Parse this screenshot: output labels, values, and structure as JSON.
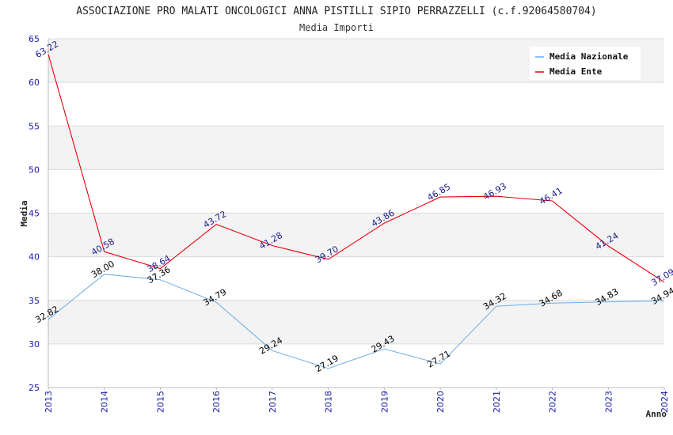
{
  "chart_data": {
    "type": "line",
    "title": "ASSOCIAZIONE PRO MALATI ONCOLOGICI ANNA PISTILLI SIPIO PERRAZZELLI (c.f.92064580704)",
    "subtitle": "Media Importi",
    "xlabel": "Anno",
    "ylabel": "Media",
    "ylim": [
      25,
      65
    ],
    "yticks": [
      "25",
      "30",
      "35",
      "40",
      "45",
      "50",
      "55",
      "60",
      "65"
    ],
    "x": [
      "2013",
      "2014",
      "2015",
      "2016",
      "2017",
      "2018",
      "2019",
      "2020",
      "2021",
      "2022",
      "2023",
      "2024"
    ],
    "legend_position": "top-right",
    "series": [
      {
        "name": "Media Nazionale",
        "color": "#6aaee8",
        "label_color": "#000000",
        "values": [
          32.82,
          38.0,
          37.36,
          34.79,
          29.24,
          27.19,
          29.43,
          27.71,
          34.32,
          34.68,
          34.83,
          34.94
        ],
        "labels": [
          "32.82",
          "38.00",
          "37.36",
          "34.79",
          "29.24",
          "27.19",
          "29.43",
          "27.71",
          "34.32",
          "34.68",
          "34.83",
          "34.94"
        ]
      },
      {
        "name": "Media Ente",
        "color": "#e8000b",
        "label_color": "#1a1a8c",
        "values": [
          63.22,
          40.58,
          38.64,
          43.72,
          41.28,
          39.7,
          43.86,
          46.85,
          46.93,
          46.41,
          41.24,
          37.09
        ],
        "labels": [
          "63.22",
          "40.58",
          "38.64",
          "43.72",
          "41.28",
          "39.70",
          "43.86",
          "46.85",
          "46.93",
          "46.41",
          "41.24",
          "37.09"
        ]
      }
    ]
  }
}
